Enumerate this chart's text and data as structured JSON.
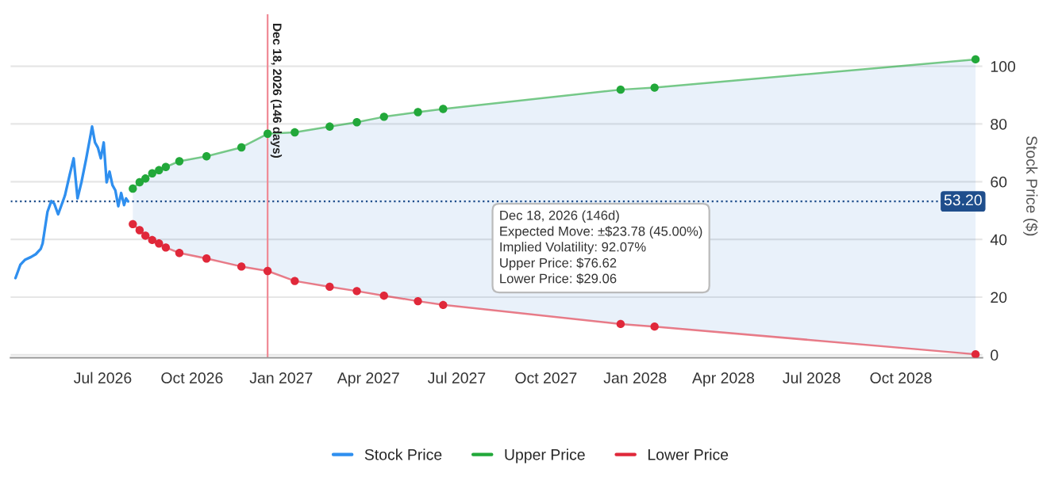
{
  "chart_data": {
    "type": "line",
    "ylabel": "Stock Price ($)",
    "x": [
      "2026-04-02",
      "2026-04-07",
      "2026-04-12",
      "2026-04-18",
      "2026-04-23",
      "2026-04-28",
      "2026-04-30",
      "2026-05-05",
      "2026-05-09",
      "2026-05-12",
      "2026-05-16",
      "2026-05-20",
      "2026-05-23",
      "2026-05-28",
      "2026-06-01",
      "2026-06-05",
      "2026-06-09",
      "2026-06-14",
      "2026-06-18",
      "2026-06-20",
      "2026-06-23",
      "2026-06-26",
      "2026-06-29",
      "2026-07-02",
      "2026-07-05",
      "2026-07-08",
      "2026-07-11",
      "2026-07-14",
      "2026-07-17",
      "2026-07-20",
      "2026-07-23",
      "2026-07-25",
      "2026-07-27"
    ],
    "series": [
      {
        "name": "Stock Price",
        "color": "#2f8fef",
        "marker": "none",
        "values": [
          26.6,
          31.2,
          33.0,
          33.9,
          34.9,
          36.7,
          38.6,
          49.6,
          53.3,
          52.4,
          48.7,
          52.4,
          55.2,
          62.5,
          68.1,
          54.2,
          59.8,
          68.1,
          75.4,
          79.1,
          73.6,
          71.8,
          68.1,
          73.6,
          59.8,
          63.5,
          58.8,
          57.0,
          51.5,
          56.1,
          51.9,
          54.2,
          53.2
        ]
      },
      {
        "name": "Upper Price",
        "color": "#22a83a",
        "marker": "circle",
        "x": [
          "2026-08-01",
          "2026-08-08",
          "2026-08-14",
          "2026-08-21",
          "2026-08-28",
          "2026-09-04",
          "2026-09-18",
          "2026-10-16",
          "2026-11-21",
          "2026-12-18",
          "2027-01-15",
          "2027-02-20",
          "2027-03-20",
          "2027-04-17",
          "2027-05-22",
          "2027-06-17",
          "2027-12-17",
          "2028-01-21",
          "2028-12-17"
        ],
        "values": [
          57.6,
          59.8,
          61.1,
          62.9,
          64.0,
          65.1,
          67.1,
          68.8,
          71.9,
          76.62,
          77.1,
          79.1,
          80.6,
          82.5,
          84.1,
          85.2,
          91.9,
          92.6,
          102.4
        ],
        "lower": [
          45.3,
          43.2,
          41.3,
          39.8,
          38.6,
          37.2,
          35.3,
          33.4,
          30.6,
          29.06,
          25.6,
          23.6,
          22.1,
          20.5,
          18.6,
          17.3,
          10.7,
          9.8,
          0.2
        ],
        "upper": [
          57.6,
          59.8,
          61.1,
          62.9,
          64.0,
          65.1,
          67.1,
          68.8,
          71.9,
          76.62,
          77.1,
          79.1,
          80.6,
          82.5,
          84.1,
          85.2,
          91.9,
          92.6,
          102.4
        ]
      },
      {
        "name": "Lower Price",
        "color": "#e0283a",
        "marker": "circle",
        "x": [
          "2026-08-01",
          "2026-08-08",
          "2026-08-14",
          "2026-08-21",
          "2026-08-28",
          "2026-09-04",
          "2026-09-18",
          "2026-10-16",
          "2026-11-21",
          "2026-12-18",
          "2027-01-15",
          "2027-02-20",
          "2027-03-20",
          "2027-04-17",
          "2027-05-22",
          "2027-06-17",
          "2027-12-17",
          "2028-01-21",
          "2028-12-17"
        ],
        "values": [
          45.3,
          43.2,
          41.3,
          39.8,
          38.6,
          37.2,
          35.3,
          33.4,
          30.6,
          29.06,
          25.6,
          23.6,
          22.1,
          20.5,
          18.6,
          17.3,
          10.7,
          9.8,
          0.2
        ]
      }
    ],
    "xlim": [
      "2026-03-28",
      "2028-12-24"
    ],
    "xticks": [
      {
        "value": "2026-07-01",
        "label": "Jul 2026"
      },
      {
        "value": "2026-10-01",
        "label": "Oct 2026"
      },
      {
        "value": "2027-01-01",
        "label": "Jan 2027"
      },
      {
        "value": "2027-04-01",
        "label": "Apr 2027"
      },
      {
        "value": "2027-07-01",
        "label": "Jul 2027"
      },
      {
        "value": "2027-10-01",
        "label": "Oct 2027"
      },
      {
        "value": "2028-01-01",
        "label": "Jan 2028"
      },
      {
        "value": "2028-04-01",
        "label": "Apr 2028"
      },
      {
        "value": "2028-07-01",
        "label": "Jul 2028"
      },
      {
        "value": "2028-10-01",
        "label": "Oct 2028"
      }
    ],
    "ylim": [
      -1,
      118
    ],
    "yticks": [
      0,
      20,
      40,
      60,
      80,
      100
    ],
    "ref_lines": [
      {
        "axis": "y",
        "value": 53.2,
        "label": "53.20",
        "color": "#1f4e8c",
        "line_style": "dotted"
      },
      {
        "axis": "x",
        "value": "2026-12-18",
        "label": "Dec 18, 2026 (146 days)",
        "color": "#f08a95",
        "line_style": "solid"
      }
    ],
    "annotations": [
      "Dec 18, 2026 (146d)",
      "Expected Move: ±$23.78 (45.00%)",
      "Implied Volatility: 92.07%",
      "Upper Price: $76.62",
      "Lower Price: $29.06"
    ],
    "grid": "y",
    "legend": "bottom"
  }
}
